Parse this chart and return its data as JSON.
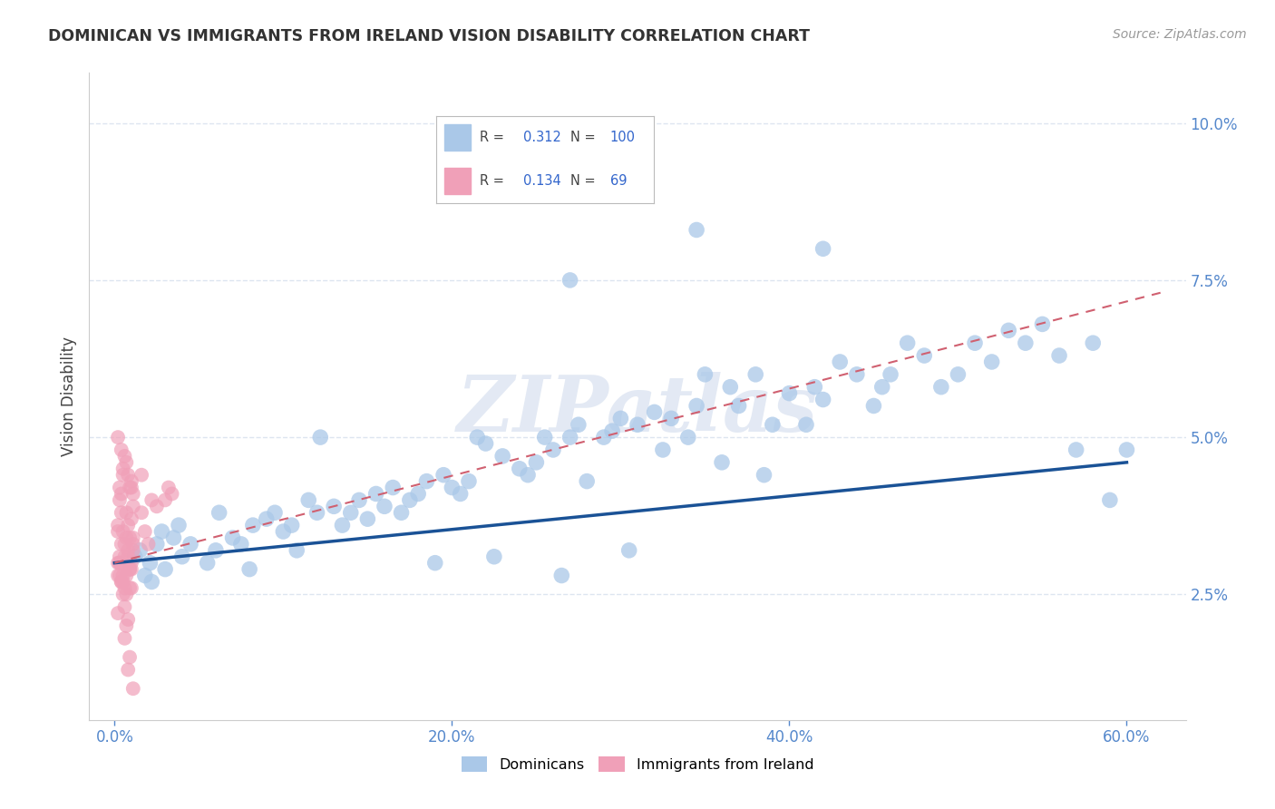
{
  "title": "DOMINICAN VS IMMIGRANTS FROM IRELAND VISION DISABILITY CORRELATION CHART",
  "source": "Source: ZipAtlas.com",
  "ylabel": "Vision Disability",
  "xlabel_ticks": [
    "0.0%",
    "20.0%",
    "40.0%",
    "60.0%"
  ],
  "xlabel_vals": [
    0.0,
    0.2,
    0.4,
    0.6
  ],
  "ylabel_ticks": [
    "2.5%",
    "5.0%",
    "7.5%",
    "10.0%"
  ],
  "ylabel_vals": [
    0.025,
    0.05,
    0.075,
    0.1
  ],
  "xlim": [
    -0.015,
    0.635
  ],
  "ylim": [
    0.005,
    0.108
  ],
  "R_dominican": 0.312,
  "N_dominican": 100,
  "R_ireland": 0.134,
  "N_ireland": 69,
  "dominican_color": "#aac8e8",
  "ireland_color": "#f0a0b8",
  "trend_dominican_color": "#1a5296",
  "trend_ireland_color": "#d06070",
  "background_color": "#ffffff",
  "grid_color": "#dde5f0",
  "legend_color_dominican": "#aac8e8",
  "legend_color_ireland": "#f0a0b8",
  "dom_trend_x": [
    0.0,
    0.6
  ],
  "dom_trend_y": [
    0.03,
    0.046
  ],
  "ire_trend_x": [
    0.0,
    0.62
  ],
  "ire_trend_y": [
    0.03,
    0.073
  ],
  "dominican_points_x": [
    0.021,
    0.015,
    0.018,
    0.012,
    0.025,
    0.03,
    0.035,
    0.022,
    0.028,
    0.04,
    0.045,
    0.038,
    0.055,
    0.06,
    0.062,
    0.07,
    0.075,
    0.08,
    0.082,
    0.09,
    0.095,
    0.1,
    0.105,
    0.108,
    0.115,
    0.12,
    0.122,
    0.13,
    0.135,
    0.14,
    0.145,
    0.15,
    0.155,
    0.16,
    0.165,
    0.17,
    0.175,
    0.18,
    0.185,
    0.19,
    0.195,
    0.2,
    0.205,
    0.21,
    0.215,
    0.22,
    0.225,
    0.23,
    0.24,
    0.245,
    0.25,
    0.255,
    0.26,
    0.265,
    0.27,
    0.275,
    0.28,
    0.29,
    0.295,
    0.3,
    0.305,
    0.31,
    0.32,
    0.325,
    0.33,
    0.34,
    0.345,
    0.35,
    0.36,
    0.365,
    0.37,
    0.38,
    0.385,
    0.39,
    0.4,
    0.41,
    0.415,
    0.42,
    0.43,
    0.44,
    0.45,
    0.455,
    0.46,
    0.47,
    0.48,
    0.49,
    0.5,
    0.51,
    0.52,
    0.53,
    0.54,
    0.55,
    0.56,
    0.57,
    0.58,
    0.59,
    0.6,
    0.345,
    0.27,
    0.42
  ],
  "dominican_points_y": [
    0.03,
    0.032,
    0.028,
    0.031,
    0.033,
    0.029,
    0.034,
    0.027,
    0.035,
    0.031,
    0.033,
    0.036,
    0.03,
    0.032,
    0.038,
    0.034,
    0.033,
    0.029,
    0.036,
    0.037,
    0.038,
    0.035,
    0.036,
    0.032,
    0.04,
    0.038,
    0.05,
    0.039,
    0.036,
    0.038,
    0.04,
    0.037,
    0.041,
    0.039,
    0.042,
    0.038,
    0.04,
    0.041,
    0.043,
    0.03,
    0.044,
    0.042,
    0.041,
    0.043,
    0.05,
    0.049,
    0.031,
    0.047,
    0.045,
    0.044,
    0.046,
    0.05,
    0.048,
    0.028,
    0.05,
    0.052,
    0.043,
    0.05,
    0.051,
    0.053,
    0.032,
    0.052,
    0.054,
    0.048,
    0.053,
    0.05,
    0.055,
    0.06,
    0.046,
    0.058,
    0.055,
    0.06,
    0.044,
    0.052,
    0.057,
    0.052,
    0.058,
    0.056,
    0.062,
    0.06,
    0.055,
    0.058,
    0.06,
    0.065,
    0.063,
    0.058,
    0.06,
    0.065,
    0.062,
    0.067,
    0.065,
    0.068,
    0.063,
    0.048,
    0.065,
    0.04,
    0.048,
    0.083,
    0.075,
    0.08
  ],
  "ireland_points_x": [
    0.002,
    0.003,
    0.004,
    0.005,
    0.006,
    0.007,
    0.008,
    0.009,
    0.01,
    0.011,
    0.002,
    0.003,
    0.004,
    0.005,
    0.006,
    0.007,
    0.008,
    0.009,
    0.01,
    0.011,
    0.002,
    0.003,
    0.004,
    0.005,
    0.006,
    0.007,
    0.008,
    0.009,
    0.01,
    0.011,
    0.002,
    0.003,
    0.004,
    0.005,
    0.006,
    0.007,
    0.008,
    0.009,
    0.01,
    0.011,
    0.002,
    0.003,
    0.004,
    0.005,
    0.006,
    0.007,
    0.008,
    0.009,
    0.01,
    0.011,
    0.002,
    0.003,
    0.004,
    0.005,
    0.006,
    0.007,
    0.008,
    0.009,
    0.01,
    0.011,
    0.016,
    0.018,
    0.02,
    0.022,
    0.025,
    0.03,
    0.032,
    0.034,
    0.016
  ],
  "ireland_points_y": [
    0.03,
    0.028,
    0.033,
    0.027,
    0.031,
    0.025,
    0.032,
    0.029,
    0.026,
    0.034,
    0.036,
    0.03,
    0.027,
    0.025,
    0.023,
    0.028,
    0.031,
    0.026,
    0.029,
    0.032,
    0.035,
    0.03,
    0.027,
    0.028,
    0.026,
    0.034,
    0.021,
    0.029,
    0.03,
    0.033,
    0.028,
    0.031,
    0.038,
    0.035,
    0.033,
    0.02,
    0.036,
    0.034,
    0.037,
    0.039,
    0.022,
    0.04,
    0.048,
    0.045,
    0.047,
    0.046,
    0.044,
    0.042,
    0.043,
    0.041,
    0.05,
    0.042,
    0.041,
    0.044,
    0.018,
    0.038,
    0.013,
    0.015,
    0.042,
    0.01,
    0.038,
    0.035,
    0.033,
    0.04,
    0.039,
    0.04,
    0.042,
    0.041,
    0.044
  ]
}
